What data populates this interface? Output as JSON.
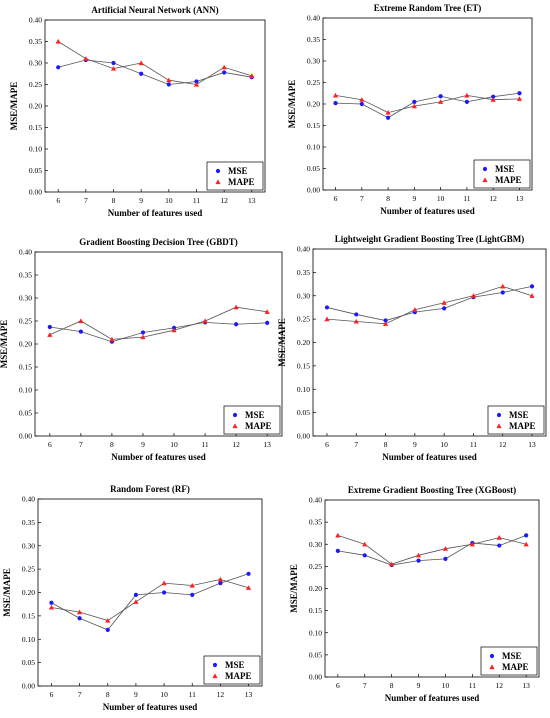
{
  "colors": {
    "mse": "#1a1aff",
    "mape": "#ff2020",
    "line": "#555555",
    "frame": "#000000"
  },
  "chart_data": [
    {
      "type": "line",
      "title": "Artificial Neural Network (ANN)",
      "xlabel": "Number of features used",
      "ylabel": "MSE/MAPE",
      "x": [
        6,
        7,
        8,
        9,
        10,
        11,
        12,
        13
      ],
      "ylim": [
        0,
        0.4
      ],
      "yticks": [
        "0.00",
        "0.05",
        "0.10",
        "0.15",
        "0.20",
        "0.25",
        "0.30",
        "0.35",
        "0.40"
      ],
      "grid": false,
      "legend": "bottom-right",
      "series": [
        {
          "name": "MSE",
          "marker": "circle",
          "values": [
            0.29,
            0.307,
            0.3,
            0.275,
            0.25,
            0.257,
            0.278,
            0.267
          ]
        },
        {
          "name": "MAPE",
          "marker": "triangle",
          "values": [
            0.35,
            0.31,
            0.287,
            0.3,
            0.26,
            0.25,
            0.29,
            0.27
          ]
        }
      ]
    },
    {
      "type": "line",
      "title": "Extreme Random Tree (ET)",
      "xlabel": "Number of features used",
      "ylabel": "MSE/MAPE",
      "x": [
        6,
        7,
        8,
        9,
        10,
        11,
        12,
        13
      ],
      "ylim": [
        0,
        0.4
      ],
      "yticks": [
        "0.00",
        "0.05",
        "0.10",
        "0.15",
        "0.20",
        "0.25",
        "0.30",
        "0.35",
        "0.40"
      ],
      "grid": false,
      "legend": "bottom-right",
      "series": [
        {
          "name": "MSE",
          "marker": "circle",
          "values": [
            0.202,
            0.2,
            0.168,
            0.205,
            0.218,
            0.205,
            0.217,
            0.225
          ]
        },
        {
          "name": "MAPE",
          "marker": "triangle",
          "values": [
            0.22,
            0.21,
            0.18,
            0.195,
            0.205,
            0.22,
            0.21,
            0.212
          ]
        }
      ]
    },
    {
      "type": "line",
      "title": "Gradient Boosting Decision Tree (GBDT)",
      "xlabel": "Number of features used",
      "ylabel": "MSE/MAPE",
      "x": [
        6,
        7,
        8,
        9,
        10,
        11,
        12,
        13
      ],
      "ylim": [
        0,
        0.4
      ],
      "yticks": [
        "0.00",
        "0.05",
        "0.10",
        "0.15",
        "0.20",
        "0.25",
        "0.30",
        "0.35",
        "0.40"
      ],
      "grid": false,
      "legend": "bottom-right",
      "series": [
        {
          "name": "MSE",
          "marker": "circle",
          "values": [
            0.237,
            0.227,
            0.205,
            0.225,
            0.235,
            0.247,
            0.243,
            0.246
          ]
        },
        {
          "name": "MAPE",
          "marker": "triangle",
          "values": [
            0.22,
            0.25,
            0.21,
            0.215,
            0.23,
            0.25,
            0.28,
            0.27
          ]
        }
      ]
    },
    {
      "type": "line",
      "title": "Lightweight Gradient Boosting Tree (LightGBM)",
      "xlabel": "Number of features used",
      "ylabel": "MSE/MAPE",
      "x": [
        6,
        7,
        8,
        9,
        10,
        11,
        12,
        13
      ],
      "ylim": [
        0,
        0.4
      ],
      "yticks": [
        "0.00",
        "0.05",
        "0.10",
        "0.15",
        "0.20",
        "0.25",
        "0.30",
        "0.35",
        "0.40"
      ],
      "grid": false,
      "legend": "bottom-right",
      "series": [
        {
          "name": "MSE",
          "marker": "circle",
          "values": [
            0.275,
            0.26,
            0.247,
            0.265,
            0.273,
            0.297,
            0.307,
            0.32
          ]
        },
        {
          "name": "MAPE",
          "marker": "triangle",
          "values": [
            0.25,
            0.245,
            0.24,
            0.27,
            0.285,
            0.3,
            0.32,
            0.3
          ]
        }
      ]
    },
    {
      "type": "line",
      "title": "Random Forest (RF)",
      "xlabel": "Number of features used",
      "ylabel": "MSE/MAPE",
      "x": [
        6,
        7,
        8,
        9,
        10,
        11,
        12,
        13
      ],
      "ylim": [
        0,
        0.4
      ],
      "yticks": [
        "0.00",
        "0.05",
        "0.10",
        "0.15",
        "0.20",
        "0.25",
        "0.30",
        "0.35",
        "0.40"
      ],
      "grid": false,
      "legend": "bottom-right",
      "series": [
        {
          "name": "MSE",
          "marker": "circle",
          "values": [
            0.178,
            0.145,
            0.12,
            0.195,
            0.2,
            0.195,
            0.22,
            0.24
          ]
        },
        {
          "name": "MAPE",
          "marker": "triangle",
          "values": [
            0.168,
            0.158,
            0.14,
            0.18,
            0.22,
            0.215,
            0.228,
            0.21
          ]
        }
      ]
    },
    {
      "type": "line",
      "title": "Extreme Gradient Boosting Tree (XGBoost)",
      "xlabel": "Number of features used",
      "ylabel": "MSE/MAPE",
      "x": [
        6,
        7,
        8,
        9,
        10,
        11,
        12,
        13
      ],
      "ylim": [
        0,
        0.4
      ],
      "yticks": [
        "0.00",
        "0.05",
        "0.10",
        "0.15",
        "0.20",
        "0.25",
        "0.30",
        "0.35",
        "0.40"
      ],
      "grid": false,
      "legend": "bottom-right",
      "series": [
        {
          "name": "MSE",
          "marker": "circle",
          "values": [
            0.285,
            0.275,
            0.253,
            0.263,
            0.267,
            0.303,
            0.297,
            0.32
          ]
        },
        {
          "name": "MAPE",
          "marker": "triangle",
          "values": [
            0.32,
            0.3,
            0.255,
            0.275,
            0.29,
            0.3,
            0.315,
            0.3
          ]
        }
      ]
    }
  ]
}
